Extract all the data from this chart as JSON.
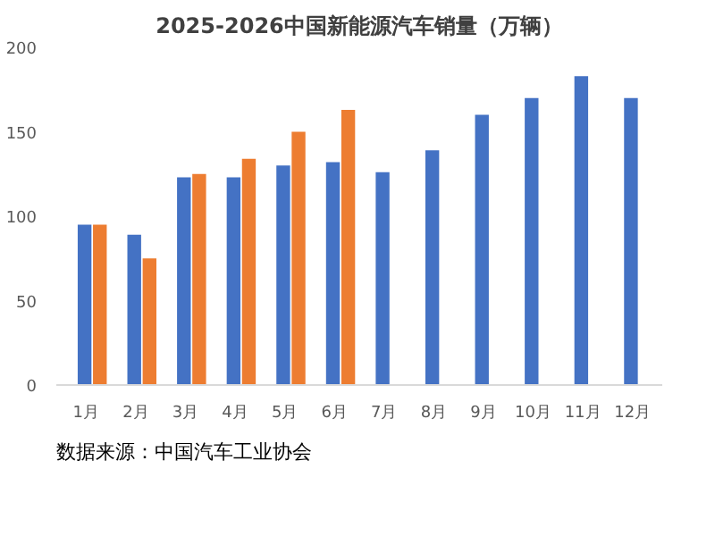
{
  "chart_data": {
    "type": "bar",
    "title": "2025-2026中国新能源汽车销量（万辆）",
    "categories": [
      "1月",
      "2月",
      "3月",
      "4月",
      "5月",
      "6月",
      "7月",
      "8月",
      "9月",
      "10月",
      "11月",
      "12月"
    ],
    "series": [
      {
        "color": "#4472c4",
        "values": [
          95,
          89,
          123,
          123,
          130,
          132,
          126,
          139,
          160,
          170,
          183,
          170
        ]
      },
      {
        "color": "#ed7d31",
        "values": [
          95,
          75,
          125,
          134,
          150,
          163,
          null,
          null,
          null,
          null,
          null,
          null
        ]
      }
    ],
    "ylim": [
      0,
      200
    ],
    "yticks": [
      0,
      50,
      100,
      150,
      200
    ],
    "grid": false,
    "annotations": [
      "数据来源：中国汽车工业协会"
    ]
  }
}
